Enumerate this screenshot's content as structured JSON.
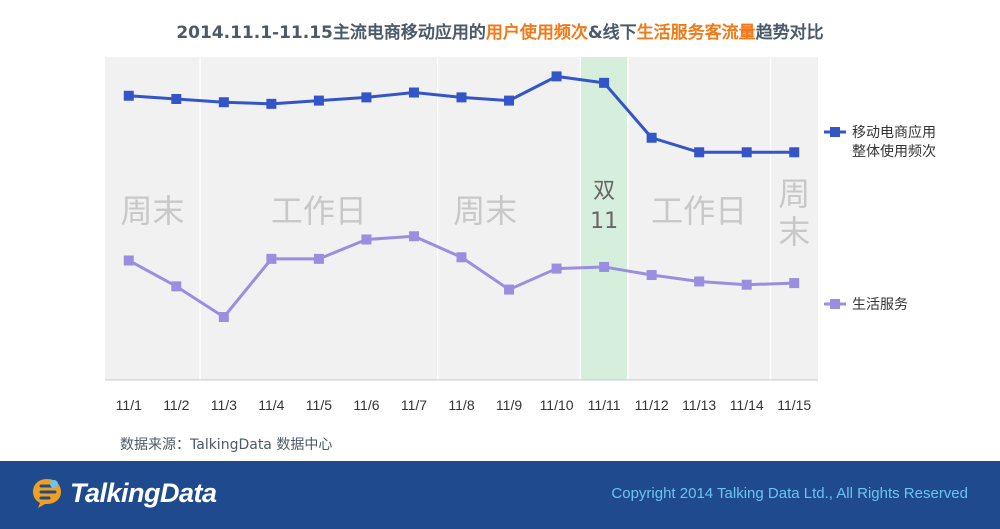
{
  "title": {
    "part1": "2014.11.1-11.15主流电商移动应用的",
    "highlight1": "用户使用频次",
    "part2": "&线下",
    "highlight2": "生活服务客流量",
    "part3": "趋势对比"
  },
  "source": "数据来源：TalkingData 数据中心",
  "footer": {
    "logo_text": "TalkingData",
    "copyright": "Copyright 2014 Talking Data Ltd., All Rights Reserved"
  },
  "colors": {
    "series1": "#3355c8",
    "series2": "#9a8ee0",
    "highlight": "#d6eedc",
    "plot_bg": "#f1f1f1",
    "band_text": "#c8c8c8"
  },
  "chart_data": {
    "type": "line",
    "title": "",
    "xlabel": "",
    "ylabel": "",
    "categories": [
      "11/1",
      "11/2",
      "11/3",
      "11/4",
      "11/5",
      "11/6",
      "11/7",
      "11/8",
      "11/9",
      "11/10",
      "11/11",
      "11/12",
      "11/13",
      "11/14",
      "11/15"
    ],
    "series": [
      {
        "name": "移动电商应用整体使用频次",
        "legend_lines": [
          "移动电商应用",
          "整体使用频次"
        ],
        "values": [
          88,
          87,
          86,
          85.5,
          86.5,
          87.5,
          89,
          87.5,
          86.5,
          94,
          92,
          75,
          70.5,
          70.5,
          70.5
        ]
      },
      {
        "name": "生活服务",
        "legend_lines": [
          "生活服务"
        ],
        "values": [
          37,
          29,
          19.5,
          37.5,
          37.5,
          43.5,
          44.5,
          38,
          28,
          34.5,
          35,
          32.5,
          30.5,
          29.5,
          30
        ]
      }
    ],
    "ylim": [
      0,
      100
    ],
    "grid": false,
    "legend_position": "right",
    "highlight_category": "11/11",
    "bands": [
      {
        "label": "周末",
        "from": "11/1",
        "to": "11/2"
      },
      {
        "label": "工作日",
        "from": "11/3",
        "to": "11/7"
      },
      {
        "label": "周末",
        "from": "11/8",
        "to": "11/9"
      },
      {
        "label": "双11",
        "from": "11/11",
        "to": "11/11"
      },
      {
        "label": "工作日",
        "from": "11/12",
        "to": "11/14"
      },
      {
        "label": "周末",
        "from": "11/15",
        "to": "11/15"
      }
    ]
  }
}
